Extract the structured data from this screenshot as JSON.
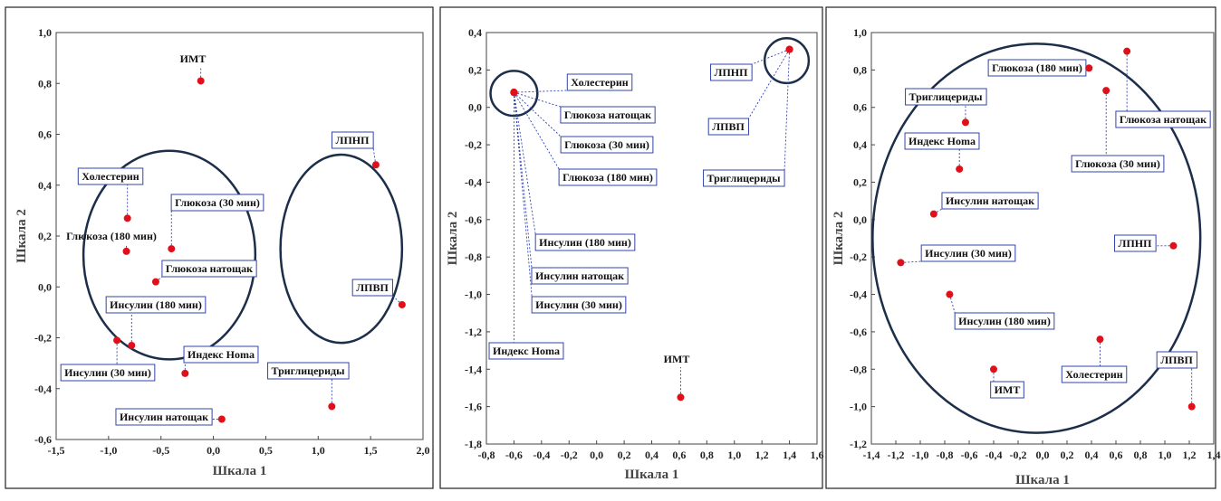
{
  "colors": {
    "point": "#e0101a",
    "ellipse": "#1c2e4a",
    "leader": "#3344aa",
    "label_border": "#3344aa"
  },
  "chart_data": [
    {
      "type": "scatter",
      "xlabel": "Шкала 1",
      "ylabel": "Шкала 2",
      "xlim": [
        -1.5,
        2.0
      ],
      "ylim": [
        -0.6,
        1.0
      ],
      "xticks": [
        "-1,5",
        "-1,0",
        "-0,5",
        "0,0",
        "0,5",
        "1,0",
        "1,5",
        "2,0"
      ],
      "yticks": [
        "1,0",
        "0,8",
        "0,6",
        "0,4",
        "0,2",
        "0,0",
        "-0,2",
        "-0,4",
        "-0,6"
      ],
      "points": [
        {
          "name": "ИМТ",
          "x": -0.12,
          "y": 0.81
        },
        {
          "name": "ЛПНП",
          "x": 1.55,
          "y": 0.48
        },
        {
          "name": "ЛПВП",
          "x": 1.8,
          "y": -0.07
        },
        {
          "name": "Холестерин",
          "x": -0.82,
          "y": 0.27
        },
        {
          "name": "Глюкоза (180 мин)",
          "x": -0.83,
          "y": 0.14
        },
        {
          "name": "Глюкоза (30 мин)",
          "x": -0.4,
          "y": 0.15
        },
        {
          "name": "Глюкоза натощак",
          "x": -0.55,
          "y": 0.02
        },
        {
          "name": "Инсулин (180 мин)",
          "x": -0.78,
          "y": -0.23
        },
        {
          "name": "Инсулин (30 мин)",
          "x": -0.92,
          "y": -0.21
        },
        {
          "name": "Индекс Homa",
          "x": -0.27,
          "y": -0.34
        },
        {
          "name": "Инсулин натощак",
          "x": 0.08,
          "y": -0.52
        },
        {
          "name": "Триглицериды",
          "x": 1.13,
          "y": -0.47
        }
      ]
    },
    {
      "type": "scatter",
      "xlabel": "Шкала 1",
      "ylabel": "Шкала 2",
      "xlim": [
        -0.8,
        1.6
      ],
      "ylim": [
        -1.8,
        0.4
      ],
      "xticks": [
        "-0,8",
        "-0,6",
        "-0,4",
        "-0,2",
        "0,0",
        "0,2",
        "0,4",
        "0,6",
        "0,8",
        "1,0",
        "1,2",
        "1,4",
        "1,6"
      ],
      "yticks": [
        "0,4",
        "0,2",
        "0,0",
        "-0,2",
        "-0,4",
        "-0,6",
        "-0,8",
        "-1,0",
        "-1,2",
        "-1,4",
        "-1,6",
        "-1,8"
      ],
      "points": [
        {
          "name": "Холестерин",
          "x": -0.6,
          "y": 0.08
        },
        {
          "name": "Глюкоза натощак",
          "x": -0.6,
          "y": 0.08
        },
        {
          "name": "Глюкоза (30 мин)",
          "x": -0.6,
          "y": 0.08
        },
        {
          "name": "Глюкоза (180 мин)",
          "x": -0.6,
          "y": 0.08
        },
        {
          "name": "Инсулин (180 мин)",
          "x": -0.6,
          "y": 0.08
        },
        {
          "name": "Инсулин натощак",
          "x": -0.6,
          "y": 0.08
        },
        {
          "name": "Инсулин (30 мин)",
          "x": -0.6,
          "y": 0.08
        },
        {
          "name": "Индекс Homa",
          "x": -0.6,
          "y": 0.08
        },
        {
          "name": "ЛПНП",
          "x": 1.4,
          "y": 0.31
        },
        {
          "name": "ЛПВП",
          "x": 1.4,
          "y": 0.31
        },
        {
          "name": "Триглицериды",
          "x": 1.4,
          "y": 0.31
        },
        {
          "name": "ИМТ",
          "x": 0.61,
          "y": -1.55
        }
      ]
    },
    {
      "type": "scatter",
      "xlabel": "Шкала 1",
      "ylabel": "Шкала 2",
      "xlim": [
        -1.4,
        1.4
      ],
      "ylim": [
        -1.2,
        1.0
      ],
      "xticks": [
        "-1,4",
        "-1,2",
        "-1,0",
        "-0,8",
        "-0,6",
        "-0,4",
        "-0,2",
        "0,0",
        "0,2",
        "0,4",
        "0,6",
        "0,8",
        "1,0",
        "1,2",
        "1,4"
      ],
      "yticks": [
        "1,0",
        "0,8",
        "0,6",
        "0,4",
        "0,2",
        "0,0",
        "-0,2",
        "-0,4",
        "-0,6",
        "-0,8",
        "-1,0",
        "-1,2"
      ],
      "points": [
        {
          "name": "Глюкоза (180 мин)",
          "x": 0.38,
          "y": 0.81
        },
        {
          "name": "Глюкоза натощак",
          "x": 0.69,
          "y": 0.9
        },
        {
          "name": "Глюкоза (30 мин)",
          "x": 0.52,
          "y": 0.69
        },
        {
          "name": "Триглицериды",
          "x": -0.63,
          "y": 0.52
        },
        {
          "name": "Индекс Homa",
          "x": -0.68,
          "y": 0.27
        },
        {
          "name": "Инсулин натощак",
          "x": -0.89,
          "y": 0.03
        },
        {
          "name": "Инсулин (30 мин)",
          "x": -1.16,
          "y": -0.23
        },
        {
          "name": "ЛПНП",
          "x": 1.07,
          "y": -0.14
        },
        {
          "name": "Инсулин (180 мин)",
          "x": -0.76,
          "y": -0.4
        },
        {
          "name": "Холестерин",
          "x": 0.47,
          "y": -0.64
        },
        {
          "name": "ИМТ",
          "x": -0.4,
          "y": -0.8
        },
        {
          "name": "ЛПВП",
          "x": 1.22,
          "y": -1.0
        }
      ]
    }
  ]
}
